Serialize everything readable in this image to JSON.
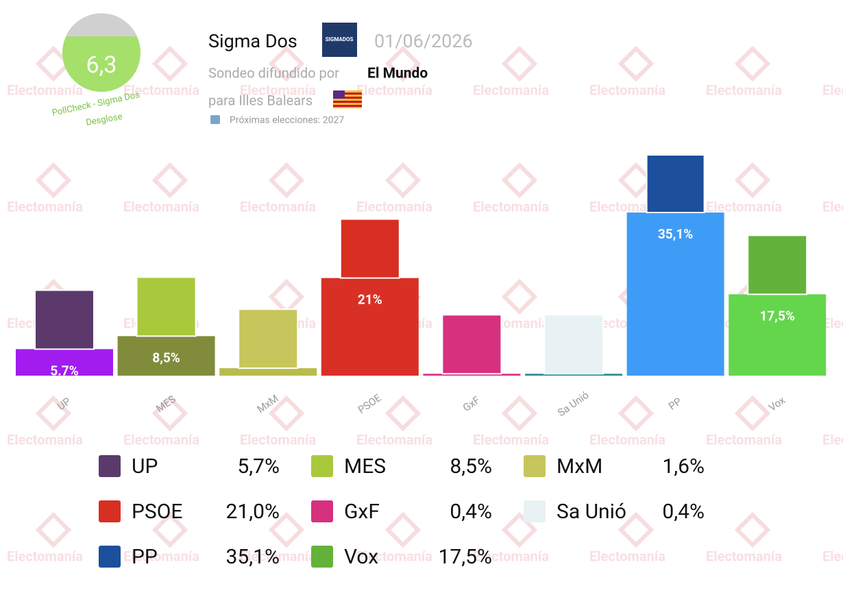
{
  "header": {
    "score": "6,3",
    "score_caption": "PollCheck - Sigma Dos",
    "breakdown": "Desglose",
    "pollster": "Sigma Dos",
    "pollster_logo": "SIGMADOS",
    "date": "01/06/2026",
    "published_by_label": "Sondeo difundido por",
    "publisher": "El Mundo",
    "region": "para Illes Balears",
    "next_elections": "Próximas elecciones: 2027"
  },
  "watermark": "Electomanía",
  "chart_data": {
    "type": "bar",
    "categories": [
      "UP",
      "MES",
      "MxM",
      "PSOE",
      "GxF",
      "Sa Unió",
      "PP",
      "Vox"
    ],
    "values": [
      5.7,
      8.5,
      1.6,
      21,
      0.4,
      0.4,
      35.1,
      17.5
    ],
    "value_labels": [
      "5.7%",
      "8,5%",
      null,
      "21%",
      null,
      null,
      "35,1%",
      "17,5%"
    ],
    "legend_value_labels": [
      "5,7%",
      "8,5%",
      "1,6%",
      "21,0%",
      "0,4%",
      "0,4%",
      "35,1%",
      "17,5%"
    ],
    "colors": [
      "#a21cf0",
      "#808c3c",
      "#b8bc4c",
      "#d93025",
      "#d8308a",
      "#2b8c94",
      "#3f9cf6",
      "#64d64c"
    ],
    "logo_colors": [
      "#5b3a6b",
      "#a9c93c",
      "#c6c65c",
      "#d92e22",
      "#d6307f",
      "#e8f2f5",
      "#1c4f9c",
      "#63b33a"
    ]
  }
}
